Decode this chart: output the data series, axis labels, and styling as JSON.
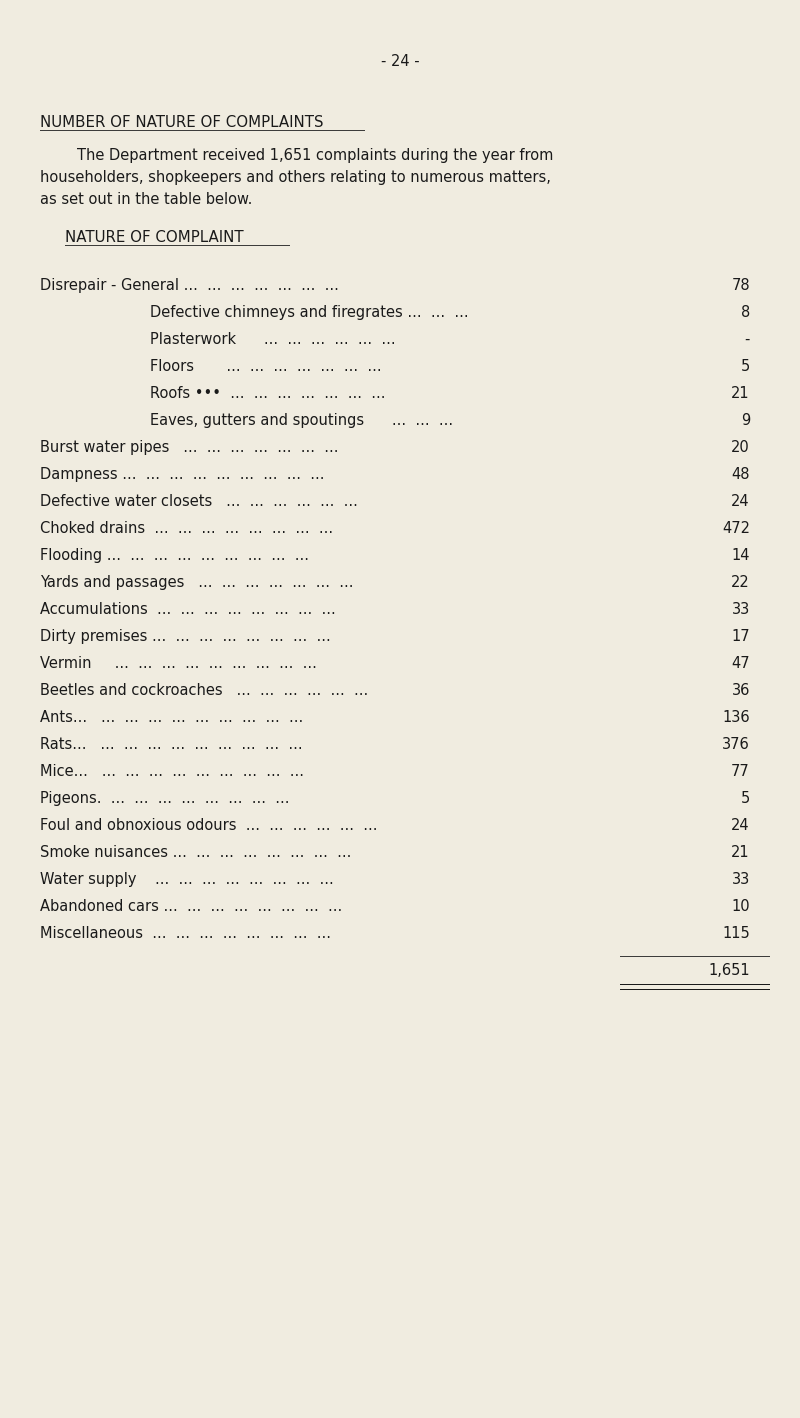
{
  "page_number": "- 24 -",
  "section_title": "NUMBER OF NATURE OF COMPLAINTS",
  "intro_text": [
    "        The Department received 1,651 complaints during the year from",
    "householders, shopkeepers and others relating to numerous matters,",
    "as set out in the table below."
  ],
  "table_header": "NATURE OF COMPLAINT",
  "rows": [
    {
      "label": "Disrepair - General",
      "dots": " ...  ...  ...  ...  ...  ...  ...",
      "indent": false,
      "value": "78"
    },
    {
      "label": "Defective chimneys and firegrates ...",
      "dots": "  ...  ...",
      "indent": true,
      "value": "8"
    },
    {
      "label": "Plasterwork",
      "dots": "      ...  ...  ...  ...  ...  ...",
      "indent": true,
      "value": "-"
    },
    {
      "label": "Floors",
      "dots": "       ...  ...  ...  ...  ...  ...  ...",
      "indent": true,
      "value": "5"
    },
    {
      "label": "Roofs",
      "dots": " •••  ...  ...  ...  ...  ...  ...  ...",
      "indent": true,
      "value": "21"
    },
    {
      "label": "Eaves, gutters and spoutings",
      "dots": "      ...  ...  ...",
      "indent": true,
      "value": "9"
    },
    {
      "label": "Burst water pipes",
      "dots": "   ...  ...  ...  ...  ...  ...  ...",
      "indent": false,
      "value": "20"
    },
    {
      "label": "Dampness ...",
      "dots": "  ...  ...  ...  ...  ...  ...  ...  ...",
      "indent": false,
      "value": "48"
    },
    {
      "label": "Defective water closets",
      "dots": "   ...  ...  ...  ...  ...  ...",
      "indent": false,
      "value": "24"
    },
    {
      "label": "Choked drains",
      "dots": "  ...  ...  ...  ...  ...  ...  ...  ...",
      "indent": false,
      "value": "472"
    },
    {
      "label": "Flooding ...",
      "dots": "  ...  ...  ...  ...  ...  ...  ...  ...",
      "indent": false,
      "value": "14"
    },
    {
      "label": "Yards and passages",
      "dots": "   ...  ...  ...  ...  ...  ...  ...",
      "indent": false,
      "value": "22"
    },
    {
      "label": "Accumulations",
      "dots": "  ...  ...  ...  ...  ...  ...  ...  ...",
      "indent": false,
      "value": "33"
    },
    {
      "label": "Dirty premises ...",
      "dots": "  ...  ...  ...  ...  ...  ...  ...",
      "indent": false,
      "value": "17"
    },
    {
      "label": "Vermin",
      "dots": "     ...  ...  ...  ...  ...  ...  ...  ...  ...",
      "indent": false,
      "value": "47"
    },
    {
      "label": "Beetles and cockroaches",
      "dots": "   ...  ...  ...  ...  ...  ...",
      "indent": false,
      "value": "36"
    },
    {
      "label": "Ants...",
      "dots": "   ...  ...  ...  ...  ...  ...  ...  ...  ...",
      "indent": false,
      "value": "136"
    },
    {
      "label": "Rats...",
      "dots": "   ...  ...  ...  ...  ...  ...  ...  ...  ...",
      "indent": false,
      "value": "376"
    },
    {
      "label": "Mice...",
      "dots": "   ...  ...  ...  ...  ...  ...  ...  ...  ...",
      "indent": false,
      "value": "77"
    },
    {
      "label": "Pigeons.",
      "dots": "  ...  ...  ...  ...  ...  ...  ...  ...",
      "indent": false,
      "value": "5"
    },
    {
      "label": "Foul and obnoxious odours",
      "dots": "  ...  ...  ...  ...  ...  ...",
      "indent": false,
      "value": "24"
    },
    {
      "label": "Smoke nuisances ...",
      "dots": "  ...  ...  ...  ...  ...  ...  ...",
      "indent": false,
      "value": "21"
    },
    {
      "label": "Water supply",
      "dots": "    ...  ...  ...  ...  ...  ...  ...  ...",
      "indent": false,
      "value": "33"
    },
    {
      "label": "Abandoned cars ...",
      "dots": "  ...  ...  ...  ...  ...  ...  ...",
      "indent": false,
      "value": "10"
    },
    {
      "label": "Miscellaneous",
      "dots": "  ...  ...  ...  ...  ...  ...  ...  ...",
      "indent": false,
      "value": "115"
    }
  ],
  "total": "1,651",
  "bg_color": "#f0ece0",
  "text_color": "#1a1a1a"
}
